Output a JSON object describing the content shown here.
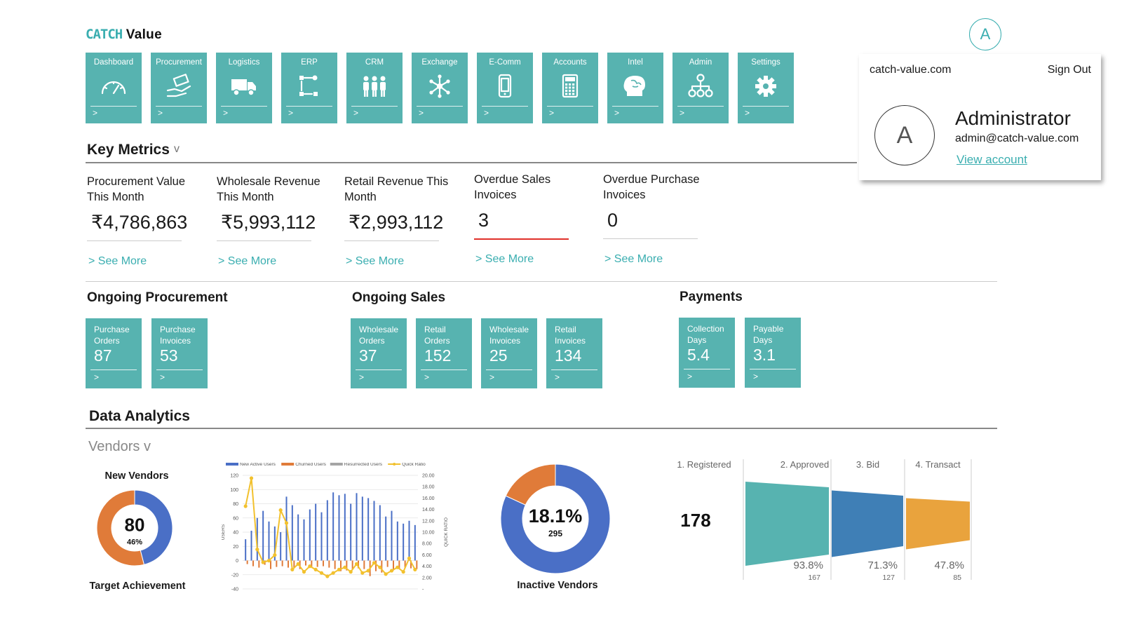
{
  "logo": {
    "part1": "CATCH",
    "part2": "Value"
  },
  "header": {
    "avatar_letter": "A"
  },
  "nav_tiles": [
    {
      "label": "Dashboard",
      "icon": "gauge-icon",
      "arrow": ">"
    },
    {
      "label": "Procurement",
      "icon": "hand-money-icon",
      "arrow": ">"
    },
    {
      "label": "Logistics",
      "icon": "truck-icon",
      "arrow": ">"
    },
    {
      "label": "ERP",
      "icon": "workflow-icon",
      "arrow": ">"
    },
    {
      "label": "CRM",
      "icon": "people-icon",
      "arrow": ">"
    },
    {
      "label": "Exchange",
      "icon": "network-icon",
      "arrow": ">"
    },
    {
      "label": "E-Comm",
      "icon": "mobile-icon",
      "arrow": ">"
    },
    {
      "label": "Accounts",
      "icon": "calculator-icon",
      "arrow": ">"
    },
    {
      "label": "Intel",
      "icon": "brain-icon",
      "arrow": ">"
    },
    {
      "label": "Admin",
      "icon": "org-chart-icon",
      "arrow": ">"
    },
    {
      "label": "Settings",
      "icon": "gear-icon",
      "arrow": ">"
    }
  ],
  "account": {
    "domain": "catch-value.com",
    "sign_out": "Sign Out",
    "avatar_letter": "A",
    "role": "Administrator",
    "email": "admin@catch-value.com",
    "view_account": "View account"
  },
  "key_metrics": {
    "title": "Key Metrics",
    "chevron": "v",
    "items": [
      {
        "label": "Procurement Value This Month",
        "value": "₹4,786,863",
        "more": "> See More"
      },
      {
        "label": "Wholesale Revenue This Month",
        "value": "₹5,993,112",
        "more": "> See More"
      },
      {
        "label": "Retail Revenue This Month",
        "value": "₹2,993,112",
        "more": "> See More"
      },
      {
        "label": "Overdue Sales Invoices",
        "value": "3",
        "more": "> See More",
        "alert": true
      },
      {
        "label": "Overdue Purchase Invoices",
        "value": "0",
        "more": "> See More"
      }
    ],
    "alert_color": "#e0302a"
  },
  "ongoing_procurement": {
    "title": "Ongoing Procurement",
    "tiles": [
      {
        "label1": "Purchase",
        "label2": "Orders",
        "value": "87",
        "arrow": ">"
      },
      {
        "label1": "Purchase",
        "label2": "Invoices",
        "value": "53",
        "arrow": ">"
      }
    ]
  },
  "ongoing_sales": {
    "title": "Ongoing Sales",
    "tiles": [
      {
        "label1": "Wholesale",
        "label2": "Orders",
        "value": "37",
        "arrow": ">"
      },
      {
        "label1": "Retail",
        "label2": "Orders",
        "value": "152",
        "arrow": ">"
      },
      {
        "label1": "Wholesale",
        "label2": "Invoices",
        "value": "25",
        "arrow": ">"
      },
      {
        "label1": "Retail",
        "label2": "Invoices",
        "value": "134",
        "arrow": ">"
      }
    ]
  },
  "payments": {
    "title": "Payments",
    "tiles": [
      {
        "label1": "Collection",
        "label2": "Days",
        "value": "5.4",
        "arrow": ">"
      },
      {
        "label1": "Payable",
        "label2": "Days",
        "value": "3.1",
        "arrow": ">"
      }
    ]
  },
  "data_analytics": {
    "title": "Data Analytics",
    "filter": "Vendors v"
  },
  "colors": {
    "teal": "#57b3b0",
    "blue": "#4a6fc6",
    "orange": "#e07b39",
    "grey": "#a5a5a5",
    "yellow": "#f2c12e",
    "funnel_blue": "#3f7fb6",
    "funnel_orange": "#e9a33d"
  },
  "chart_data": [
    {
      "type": "pie",
      "variant": "donut",
      "title": "New Vendors",
      "center_value": "80",
      "center_sub": "46%",
      "caption": "Target Achievement",
      "slices": [
        {
          "value": 46,
          "color": "#4a6fc6"
        },
        {
          "value": 54,
          "color": "#e07b39"
        }
      ]
    },
    {
      "type": "bar",
      "legend": [
        "New Active Users",
        "Churned Users",
        "Resurrected Users",
        "Quick Ratio"
      ],
      "ylabel": "USERS",
      "y2label": "QUICK RATIO",
      "ylim": [
        -40,
        120
      ],
      "y_ticks": [
        "120",
        "100",
        "80",
        "60",
        "40",
        "20",
        "0",
        "-20",
        "-40"
      ],
      "y2lim": [
        0,
        20
      ],
      "y2_ticks": [
        "20.00",
        "18.00",
        "16.00",
        "14.00",
        "12.00",
        "10.00",
        "8.00",
        "6.00",
        "4.00",
        "2.00",
        "-"
      ],
      "new_active": [
        30,
        42,
        60,
        70,
        55,
        48,
        40,
        90,
        78,
        65,
        58,
        72,
        80,
        68,
        85,
        96,
        92,
        94,
        80,
        95,
        90,
        88,
        84,
        78,
        62,
        70,
        55,
        52,
        56,
        50
      ],
      "churned": [
        -5,
        -8,
        -10,
        -6,
        -12,
        -9,
        -8,
        -10,
        -11,
        -12,
        -7,
        -10,
        -9,
        -8,
        -10,
        -12,
        -15,
        -14,
        -13,
        -11,
        -12,
        -22,
        -15,
        -17,
        -9,
        -14,
        -12,
        -10,
        -11,
        -12
      ],
      "quick_ratio": [
        14.5,
        19.5,
        6.8,
        4.5,
        4.8,
        5.8,
        13.8,
        11.5,
        3.2,
        4.2,
        2.8,
        3.8,
        3.2,
        2.6,
        2.0,
        2.6,
        3.2,
        3.6,
        2.8,
        4.2,
        2.6,
        3.0,
        4.4,
        3.6,
        2.4,
        3.0,
        3.6,
        2.8,
        5.2,
        3.2
      ]
    },
    {
      "type": "pie",
      "variant": "donut",
      "center_value": "18.1%",
      "center_sub": "295",
      "caption": "Inactive Vendors",
      "slices": [
        {
          "value": 81.9,
          "color": "#4a6fc6"
        },
        {
          "value": 18.1,
          "color": "#e07b39"
        }
      ]
    },
    {
      "type": "bar",
      "variant": "funnel",
      "big_value": "178",
      "stages": [
        {
          "label": "1. Registered"
        },
        {
          "label": "2. Approved",
          "pct": "93.8%",
          "count": "167",
          "color": "#57b3b0"
        },
        {
          "label": "3. Bid",
          "pct": "71.3%",
          "count": "127",
          "color": "#3f7fb6"
        },
        {
          "label": "4. Transact",
          "pct": "47.8%",
          "count": "85",
          "color": "#e9a33d"
        }
      ]
    }
  ]
}
